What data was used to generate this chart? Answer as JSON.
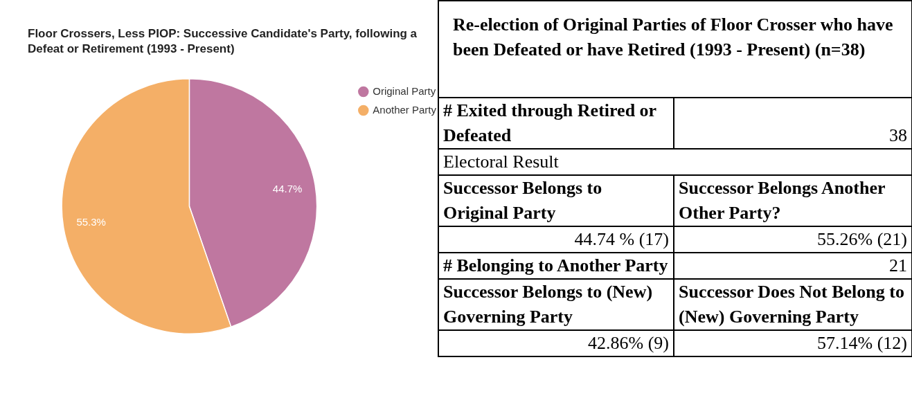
{
  "chart_data": [
    {
      "type": "pie",
      "title": "Floor Crossers, Less PIOP: Successive Candidate's Party, following a Defeat or Retirement (1993 - Present)",
      "categories": [
        "Original Party",
        "Another Party"
      ],
      "values": [
        44.7,
        55.3
      ],
      "colors": [
        "#bf77a0",
        "#f4af67"
      ],
      "value_labels": [
        "44.7%",
        "55.3%"
      ],
      "legend": "top right"
    },
    {
      "type": "other",
      "title": "Re-election of Original Parties of Floor Crosser who have been Defeated or have Retired (1993 - Present) (n=38)",
      "annotations": [
        "# Exited through Retired or Defeated",
        "38",
        "Electoral Result",
        "Successor Belongs to Original Party",
        "Successor Belongs Another Other Party?",
        "44.74 % (17)",
        "55.26% (21)",
        "# Belonging to Another Party",
        "21",
        "Successor Belongs to (New) Governing Party",
        "Successor Does Not Belong to (New) Governing Party",
        "42.86% (9)",
        "57.14% (12)"
      ]
    }
  ]
}
